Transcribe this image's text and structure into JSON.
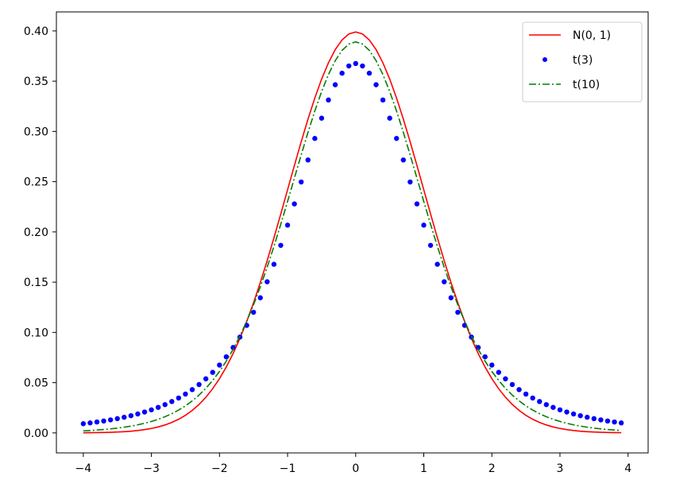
{
  "chart_data": {
    "type": "line",
    "title": "",
    "xlabel": "",
    "ylabel": "",
    "xlim": [
      -4.395,
      4.295
    ],
    "ylim": [
      -0.0199,
      0.4189
    ],
    "grid": false,
    "legend_position": "upper right",
    "x_ticks": [
      -4,
      -3,
      -2,
      -1,
      0,
      1,
      2,
      3,
      4
    ],
    "y_ticks": [
      0.0,
      0.05,
      0.1,
      0.15,
      0.2,
      0.25,
      0.3,
      0.35,
      0.4
    ],
    "x_tick_labels": [
      "−4",
      "−3",
      "−2",
      "−1",
      "0",
      "1",
      "2",
      "3",
      "4"
    ],
    "y_tick_labels": [
      "0.00",
      "0.05",
      "0.10",
      "0.15",
      "0.20",
      "0.25",
      "0.30",
      "0.35",
      "0.40"
    ],
    "x_range": {
      "start": -4.0,
      "stop": 3.9,
      "step": 0.1
    },
    "series": [
      {
        "name": "N(0, 1)",
        "distribution": "normal",
        "mean": 0,
        "sd": 1,
        "style": "solid line",
        "color": "#ff0000"
      },
      {
        "name": "t(3)",
        "distribution": "student_t",
        "df": 3,
        "style": "dots",
        "color": "#0000ff"
      },
      {
        "name": "t(10)",
        "distribution": "student_t",
        "df": 10,
        "style": "dash-dot line",
        "color": "#008000"
      }
    ]
  }
}
